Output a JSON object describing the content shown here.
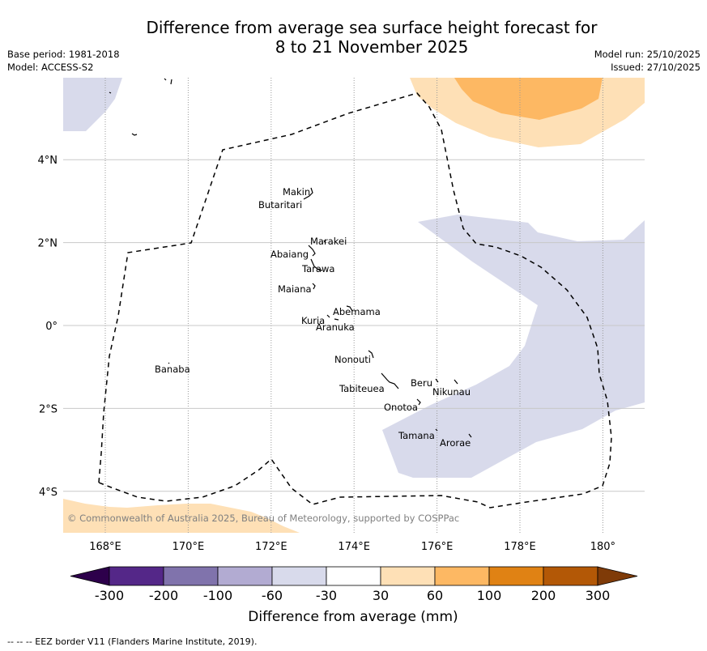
{
  "header": {
    "title_line1": "Difference from average sea surface height forecast for",
    "title_line2": "8 to 21 November 2025",
    "base_period": "Base period: 1981-2018",
    "model": "Model: ACCESS-S2",
    "model_run": "Model run: 25/10/2025",
    "issued": "Issued: 27/10/2025"
  },
  "map": {
    "extent": {
      "lon_min": 167.0,
      "lon_max": 181.0,
      "lat_min": -5.0,
      "lat_max": 6.0
    },
    "lon_ticks": [
      {
        "lon": 168,
        "label": "168°E"
      },
      {
        "lon": 170,
        "label": "170°E"
      },
      {
        "lon": 172,
        "label": "172°E"
      },
      {
        "lon": 174,
        "label": "174°E"
      },
      {
        "lon": 176,
        "label": "176°E"
      },
      {
        "lon": 178,
        "label": "178°E"
      },
      {
        "lon": 180,
        "label": "180°"
      }
    ],
    "lat_ticks": [
      {
        "lat": 4,
        "label": "4°N"
      },
      {
        "lat": 2,
        "label": "2°N"
      },
      {
        "lat": 0,
        "label": "0°"
      },
      {
        "lat": -2,
        "label": "2°S"
      },
      {
        "lat": -4,
        "label": "4°S"
      }
    ],
    "places": [
      {
        "name": "Makin",
        "lon": 173.0,
        "lat": 3.2
      },
      {
        "name": "Butaritari",
        "lon": 172.8,
        "lat": 3.0
      },
      {
        "name": "Marakei",
        "lon": 173.3,
        "lat": 2.0
      },
      {
        "name": "Abaiang",
        "lon": 172.9,
        "lat": 1.8
      },
      {
        "name": "Tarawa",
        "lon": 173.0,
        "lat": 1.4
      },
      {
        "name": "Maiana",
        "lon": 173.0,
        "lat": 0.9
      },
      {
        "name": "Abemama",
        "lon": 173.9,
        "lat": 0.4
      },
      {
        "name": "Kuria",
        "lon": 173.4,
        "lat": 0.2
      },
      {
        "name": "Aranuka",
        "lon": 173.6,
        "lat": 0.1
      },
      {
        "name": "Banaba",
        "lon": 169.5,
        "lat": -0.85
      },
      {
        "name": "Nonouti",
        "lon": 174.4,
        "lat": -0.7
      },
      {
        "name": "Tabiteuea",
        "lon": 174.8,
        "lat": -1.3
      },
      {
        "name": "Beru",
        "lon": 176.0,
        "lat": -1.35
      },
      {
        "name": "Nikunau",
        "lon": 176.5,
        "lat": -1.35
      },
      {
        "name": "Onotoa",
        "lon": 175.6,
        "lat": -1.85
      },
      {
        "name": "Tamana",
        "lon": 176.0,
        "lat": -2.6
      },
      {
        "name": "Arorae",
        "lon": 176.8,
        "lat": -2.65
      }
    ],
    "copyright": "© Commonwealth of Australia 2025, Bureau of Meteorology, supported by COSPPac"
  },
  "colorbar": {
    "title": "Difference from average (mm)",
    "ticks": [
      "-300",
      "-200",
      "-100",
      "-60",
      "-30",
      "30",
      "60",
      "100",
      "200",
      "300"
    ],
    "colors": [
      "#2d004b",
      "#542788",
      "#8073ac",
      "#b2abd2",
      "#d8daeb",
      "#ffffff",
      "#fee0b6",
      "#fdb863",
      "#e08214",
      "#b35806",
      "#7f3b08"
    ]
  },
  "footer": {
    "legend": "--  --  -- EEZ border V11 (Flanders Marine Institute, 2019)."
  }
}
